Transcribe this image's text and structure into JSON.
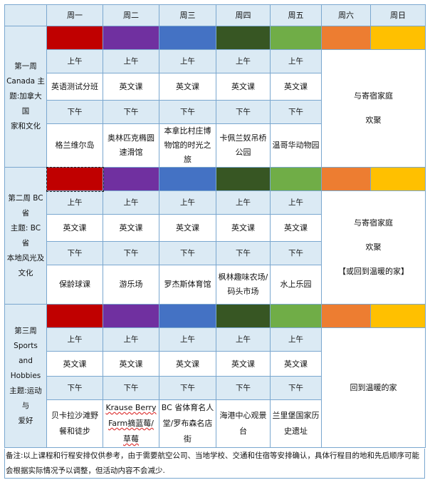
{
  "days": [
    "周一",
    "周二",
    "周三",
    "周四",
    "周五",
    "周六",
    "周日"
  ],
  "day_colors": [
    "#c00000",
    "#7030a0",
    "#4472c4",
    "#375623",
    "#70ad47",
    "#ed7d31",
    "#ffc000"
  ],
  "weeks": [
    {
      "label_lines": [
        "第一周",
        "Canada 主",
        "题:加拿大国",
        "家和文化"
      ],
      "am_label": "上午",
      "pm_label": "下午",
      "am": [
        "英语测试分班",
        "英文课",
        "英文课",
        "英文课",
        "英文课"
      ],
      "pm": [
        "格兰维尔岛",
        "奥林匹克椭圆速滑馆",
        "本拿比村庄博物馆的时光之旅",
        "卡佩兰奴吊桥公园",
        "温哥华动物园"
      ],
      "weekend_lines": [
        "与寄宿家庭",
        "欢聚"
      ]
    },
    {
      "label_lines": [
        "第二周 BC 省",
        "主题: BC 省",
        "本地风光及",
        "文化"
      ],
      "am_label": "上午",
      "pm_label": "下午",
      "am": [
        "英文课",
        "英文课",
        "英文课",
        "英文课",
        "英文课"
      ],
      "pm": [
        "保龄球课",
        "游乐场",
        "罗杰斯体育馆",
        "枫林趣味农场/码头市场",
        "水上乐园"
      ],
      "weekend_lines": [
        "与寄宿家庭",
        "欢聚",
        "【或回到温暖的家】"
      ]
    },
    {
      "label_lines": [
        "第三周",
        "Sports and",
        "Hobbies",
        "主题:运动与",
        "爱好"
      ],
      "am_label": "上午",
      "pm_label": "下午",
      "am": [
        "英文课",
        "英文课",
        "英文课",
        "英文课",
        "英文课"
      ],
      "pm": [
        "贝卡拉沙滩野餐和徒步",
        "Krause Berry Farm摘蓝莓/草莓",
        "BC 省体育名人堂/罗布森名店街",
        "海港中心观景台",
        "兰里堡国家历史遗址"
      ],
      "weekend_lines": [
        "回到温暖的家"
      ]
    }
  ],
  "note": "备注:以上课程和行程安排仅供参考，由于需要航空公司、当地学校、交通和住宿等安排确认，具体行程目的地和先后顺序可能会根据实际情况予以调整，但活动内容不会减少."
}
